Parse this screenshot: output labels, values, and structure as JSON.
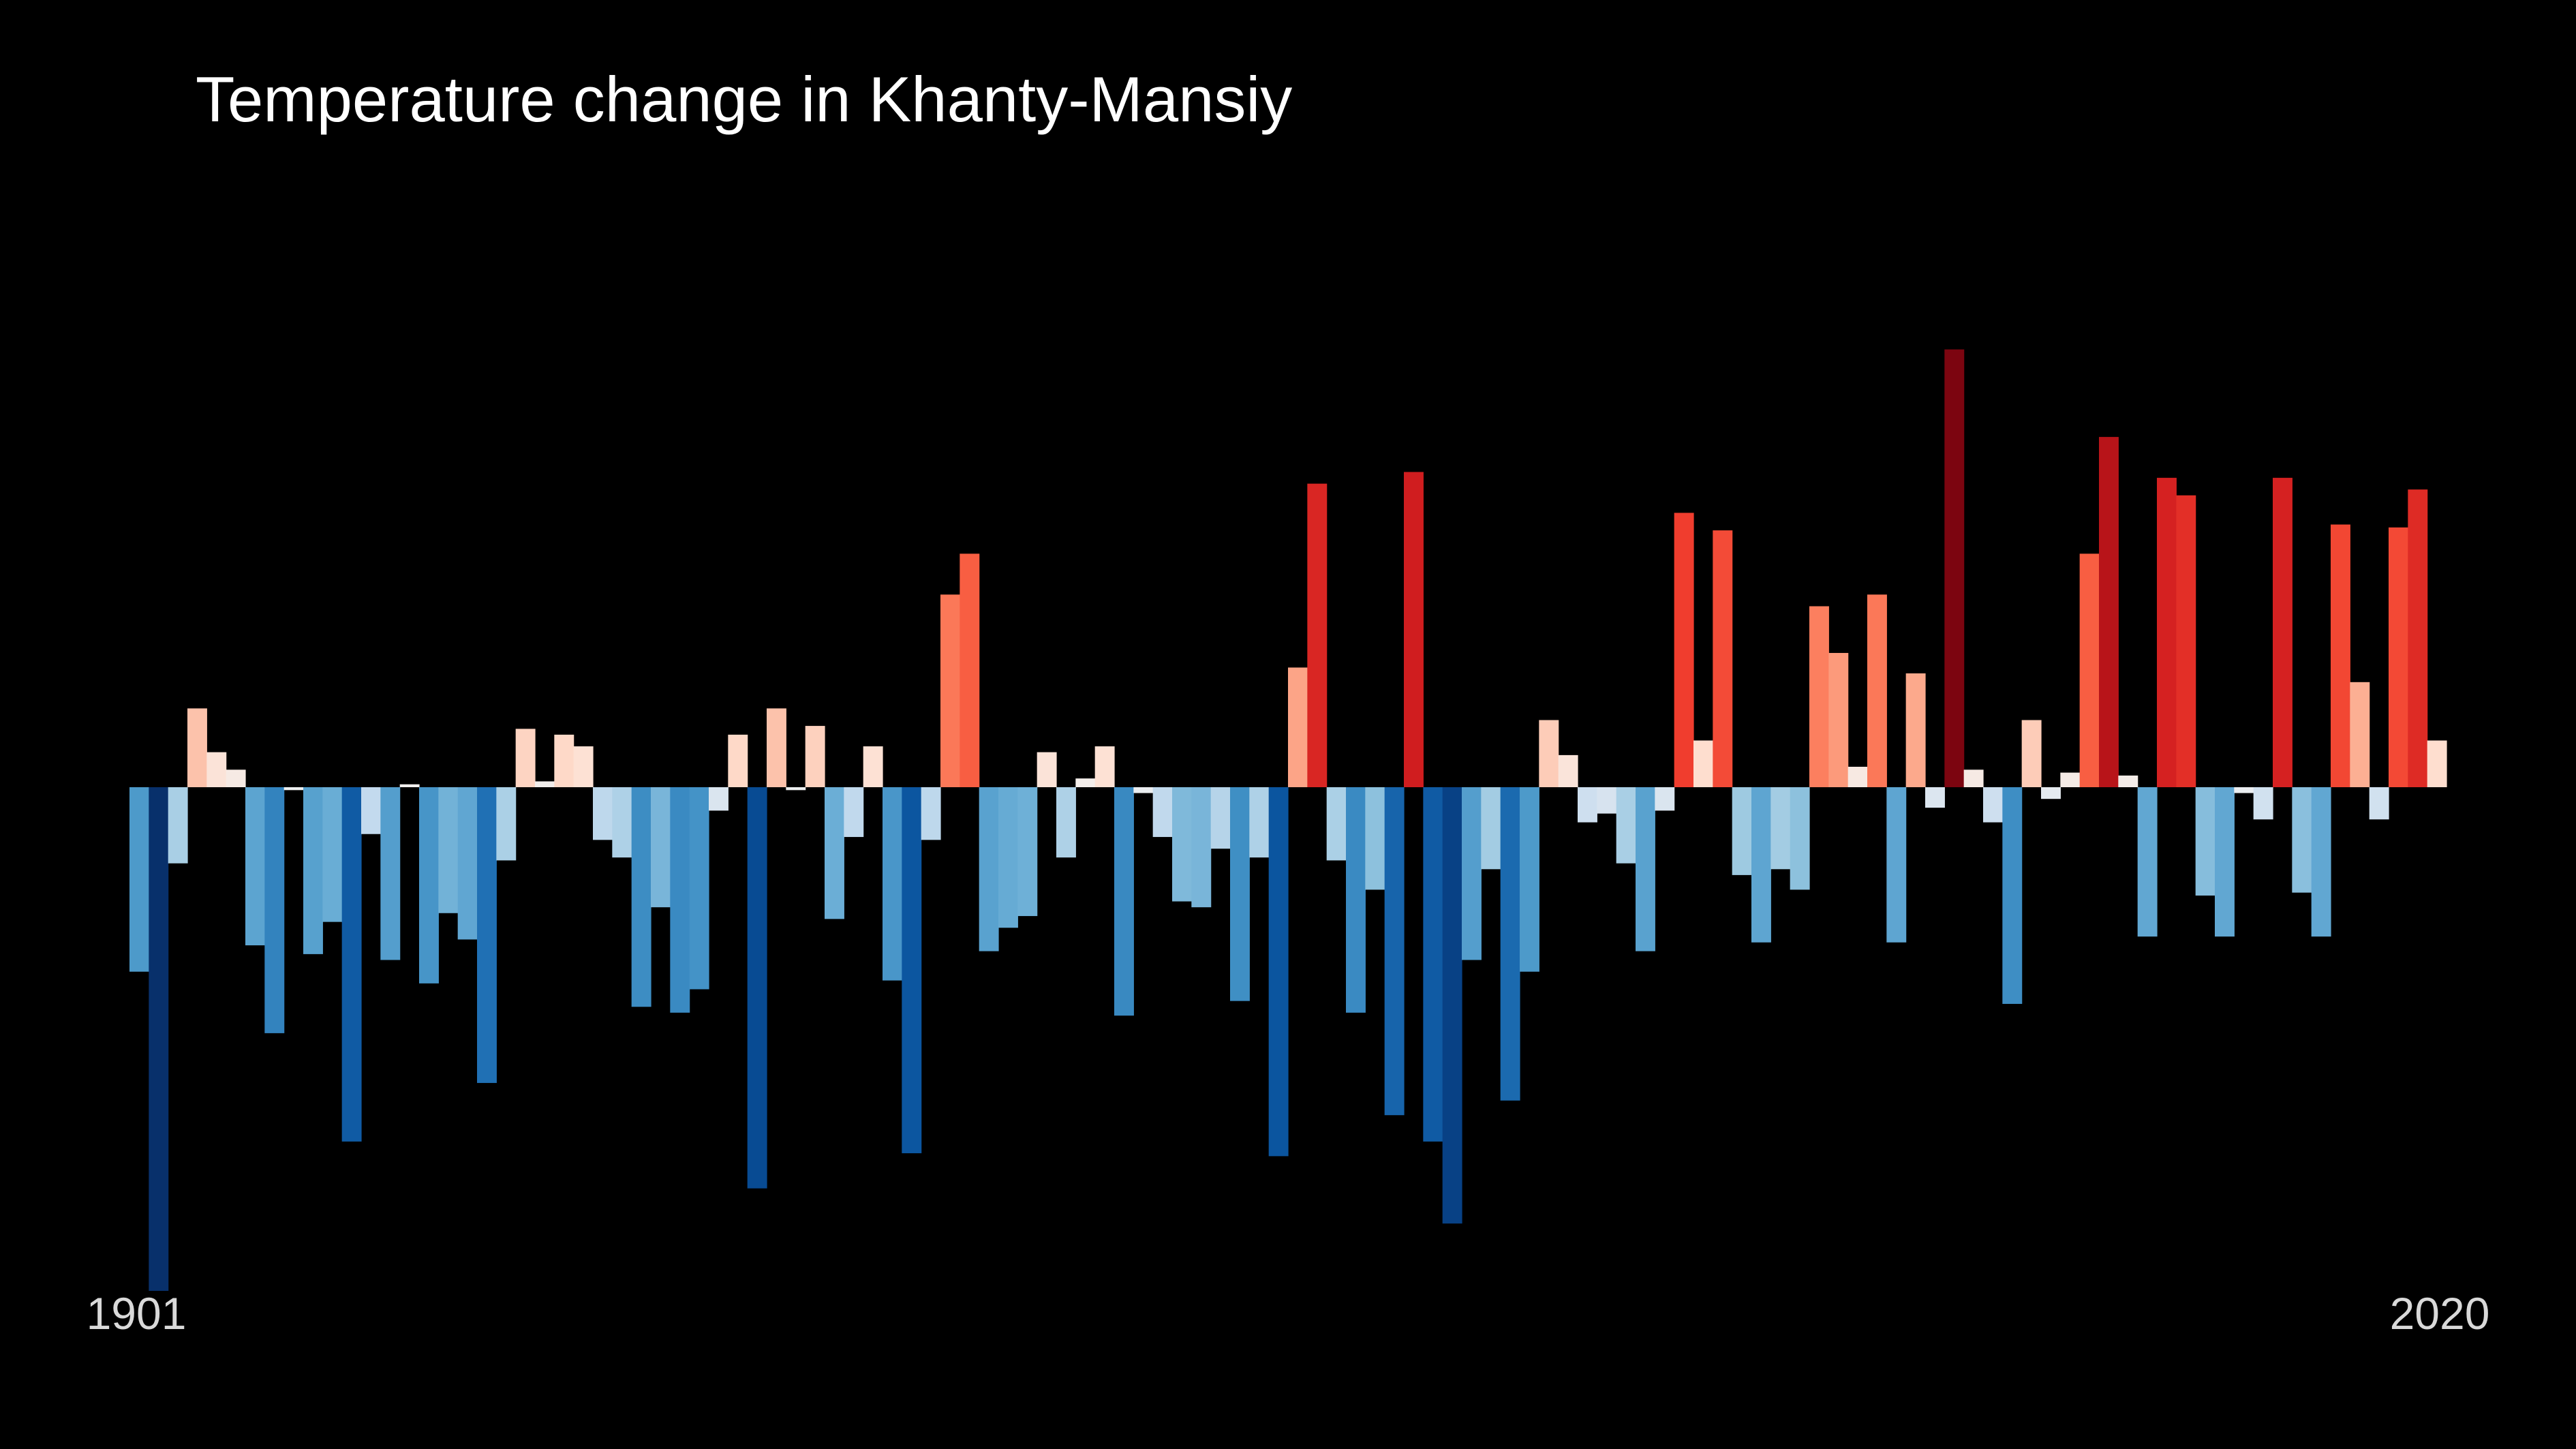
{
  "chart_data": {
    "type": "bar",
    "title": "Temperature change in Khanty-Mansiy",
    "xlabel": "",
    "ylabel": "",
    "x_start_label": "1901",
    "x_end_label": "2020",
    "grid": false,
    "legend": "none",
    "ylim": [
      -1.72,
      2.16
    ],
    "colors": {
      "background": "#000000",
      "title_text": "#ffffff",
      "axis_text": "#d9d9d9"
    },
    "categories": [
      1901,
      1902,
      1903,
      1904,
      1905,
      1906,
      1907,
      1908,
      1909,
      1910,
      1911,
      1912,
      1913,
      1914,
      1915,
      1916,
      1917,
      1918,
      1919,
      1920,
      1921,
      1922,
      1923,
      1924,
      1925,
      1926,
      1927,
      1928,
      1929,
      1930,
      1931,
      1932,
      1933,
      1934,
      1935,
      1936,
      1937,
      1938,
      1939,
      1940,
      1941,
      1942,
      1943,
      1944,
      1945,
      1946,
      1947,
      1948,
      1949,
      1950,
      1951,
      1952,
      1953,
      1954,
      1955,
      1956,
      1957,
      1958,
      1959,
      1960,
      1961,
      1962,
      1963,
      1964,
      1965,
      1966,
      1967,
      1968,
      1969,
      1970,
      1971,
      1972,
      1973,
      1974,
      1975,
      1976,
      1977,
      1978,
      1979,
      1980,
      1981,
      1982,
      1983,
      1984,
      1985,
      1986,
      1987,
      1988,
      1989,
      1990,
      1991,
      1992,
      1993,
      1994,
      1995,
      1996,
      1997,
      1998,
      1999,
      2000,
      2001,
      2002,
      2003,
      2004,
      2005,
      2006,
      2007,
      2008,
      2009,
      2010,
      2011,
      2012,
      2013,
      2014,
      2015,
      2016,
      2017,
      2018,
      2019,
      2020
    ],
    "values": [
      -0.63,
      -1.72,
      -0.26,
      0.27,
      0.12,
      0.06,
      -0.54,
      -0.84,
      -0.01,
      -0.57,
      -0.46,
      -1.21,
      -0.16,
      -0.59,
      0.01,
      -0.67,
      -0.43,
      -0.52,
      -1.01,
      -0.25,
      0.2,
      0.02,
      0.18,
      0.14,
      -0.18,
      -0.24,
      -0.75,
      -0.41,
      -0.77,
      -0.69,
      -0.08,
      0.18,
      -1.37,
      0.27,
      -0.01,
      0.21,
      -0.45,
      -0.17,
      0.14,
      -0.66,
      -1.25,
      -0.18,
      0.66,
      0.8,
      -0.56,
      -0.48,
      -0.44,
      0.12,
      -0.24,
      0.03,
      0.14,
      -0.78,
      -0.02,
      -0.17,
      -0.39,
      -0.41,
      -0.21,
      -0.73,
      -0.24,
      -1.26,
      0.41,
      1.04,
      -0.25,
      -0.77,
      -0.35,
      -1.12,
      1.08,
      -1.21,
      -1.49,
      -0.59,
      -0.28,
      -1.07,
      -0.63,
      0.23,
      0.11,
      -0.12,
      -0.09,
      -0.26,
      -0.56,
      -0.08,
      0.94,
      0.16,
      0.88,
      -0.3,
      -0.53,
      -0.28,
      -0.35,
      0.62,
      0.46,
      0.07,
      0.66,
      -0.53,
      0.39,
      -0.07,
      1.5,
      0.06,
      -0.12,
      -0.74,
      0.23,
      -0.04,
      0.05,
      0.8,
      1.2,
      0.04,
      -0.51,
      1.06,
      1.0,
      -0.37,
      -0.51,
      -0.02,
      -0.11,
      1.06,
      -0.36,
      -0.51,
      0.9,
      0.36,
      -0.11,
      0.89,
      1.02,
      0.16
    ]
  }
}
